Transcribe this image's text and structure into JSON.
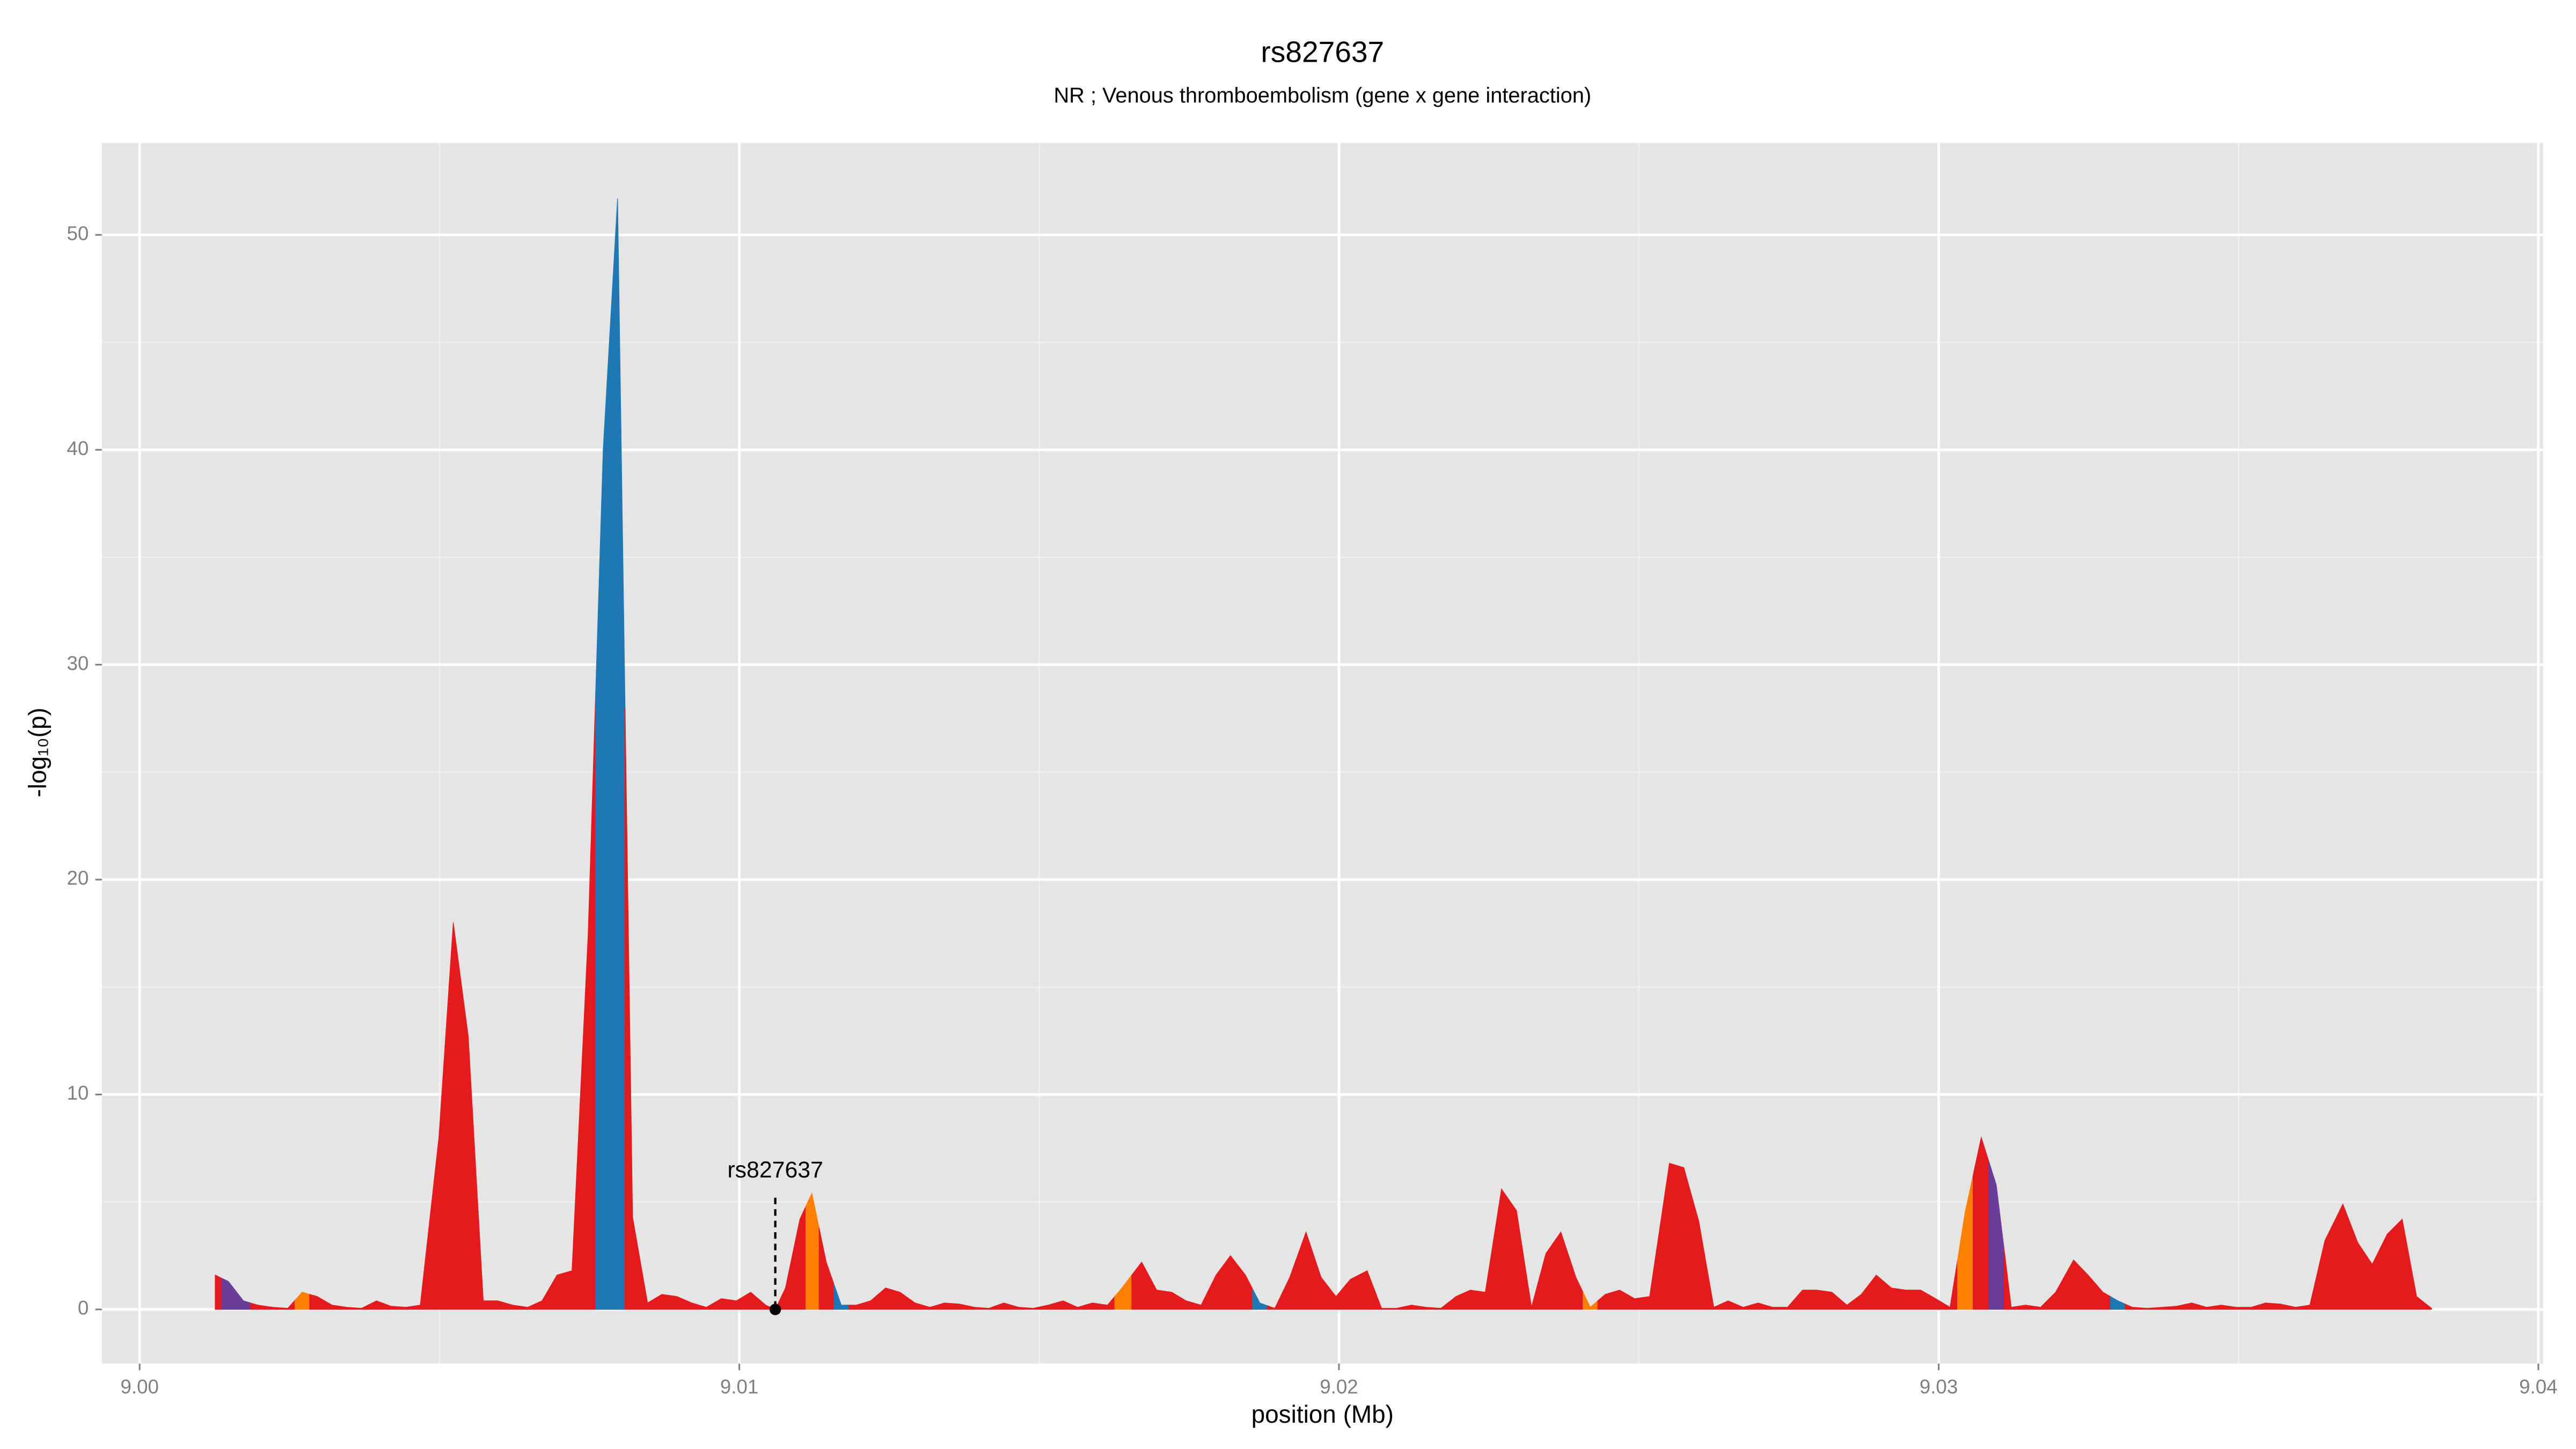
{
  "chart_data": {
    "type": "area",
    "title": "rs827637",
    "subtitle": "NR ; Venous thromboembolism (gene x gene interaction)",
    "x_label": "position (Mb)",
    "y_label": "-log₁₀(p)",
    "xlim": [
      8.99937,
      9.04008
    ],
    "ylim": [
      -2.52,
      54.28
    ],
    "xticks": [
      {
        "value": 9,
        "label": "9.00"
      },
      9.01,
      9.02,
      9.03,
      9.04
    ],
    "yticks": [
      0,
      10,
      20,
      30,
      40,
      50
    ],
    "grid": true,
    "x": [
      9.00126,
      9.00148,
      9.00173,
      9.00197,
      9.00222,
      9.00247,
      9.00271,
      9.00296,
      9.00321,
      9.00345,
      9.0037,
      9.00395,
      9.00419,
      9.00444,
      9.00468,
      9.00499,
      9.00523,
      9.00548,
      9.00573,
      9.00597,
      9.00622,
      9.00647,
      9.00671,
      9.00696,
      9.00721,
      9.00748,
      9.00773,
      9.00797,
      9.00822,
      9.00847,
      9.00871,
      9.00896,
      9.00921,
      9.00945,
      9.0097,
      9.00995,
      9.01019,
      9.01044,
      9.0106,
      9.01077,
      9.01101,
      9.01121,
      9.01145,
      9.0117,
      9.01195,
      9.01219,
      9.01244,
      9.01268,
      9.01293,
      9.01318,
      9.01342,
      9.01367,
      9.01392,
      9.01416,
      9.01441,
      9.01466,
      9.0149,
      9.01515,
      9.0154,
      9.01564,
      9.01589,
      9.01614,
      9.01638,
      9.01671,
      9.01696,
      9.01721,
      9.01745,
      9.0177,
      9.01795,
      9.01819,
      9.01844,
      9.01868,
      9.01893,
      9.01918,
      9.01945,
      9.0197,
      9.01995,
      9.02019,
      9.02047,
      9.02071,
      9.02096,
      9.02121,
      9.02145,
      9.0217,
      9.02195,
      9.02219,
      9.02244,
      9.02271,
      9.02296,
      9.02321,
      9.02345,
      9.0237,
      9.02395,
      9.02419,
      9.02444,
      9.02468,
      9.02493,
      9.02518,
      9.02551,
      9.02575,
      9.026,
      9.02625,
      9.02649,
      9.02674,
      9.02699,
      9.02723,
      9.02748,
      9.02773,
      9.02797,
      9.02822,
      9.02847,
      9.02871,
      9.02896,
      9.02921,
      9.02945,
      9.0297,
      9.02995,
      9.03019,
      9.03044,
      9.03071,
      9.03096,
      9.03121,
      9.03145,
      9.0317,
      9.03195,
      9.03225,
      9.03249,
      9.03274,
      9.03299,
      9.03323,
      9.03348,
      9.03373,
      9.03397,
      9.03422,
      9.03447,
      9.03471,
      9.03496,
      9.03521,
      9.03545,
      9.0357,
      9.03595,
      9.03619,
      9.03644,
      9.03674,
      9.03699,
      9.03723,
      9.03748,
      9.03773,
      9.03797,
      9.03822
    ],
    "values": [
      1.6,
      1.3,
      0.4,
      0.2,
      0.1,
      0.05,
      0.8,
      0.6,
      0.2,
      0.1,
      0.05,
      0.4,
      0.15,
      0.1,
      0.2,
      8,
      18,
      12.7,
      0.4,
      0.4,
      0.2,
      0.1,
      0.4,
      1.6,
      1.8,
      17.5,
      40,
      51.7,
      4.3,
      0.3,
      0.7,
      0.6,
      0.3,
      0.1,
      0.5,
      0.4,
      0.8,
      0.2,
      0,
      1.0,
      4.2,
      5.4,
      2.2,
      0.2,
      0.2,
      0.4,
      1.0,
      0.8,
      0.3,
      0.1,
      0.3,
      0.25,
      0.1,
      0.05,
      0.3,
      0.1,
      0.05,
      0.2,
      0.4,
      0.1,
      0.3,
      0.2,
      1.0,
      2.2,
      0.9,
      0.8,
      0.4,
      0.2,
      1.6,
      2.5,
      1.6,
      0.3,
      0.05,
      1.5,
      3.6,
      1.5,
      0.6,
      1.4,
      1.8,
      0.05,
      0.05,
      0.2,
      0.1,
      0.05,
      0.6,
      0.9,
      0.8,
      5.6,
      4.6,
      0.1,
      2.6,
      3.6,
      1.5,
      0.1,
      0.7,
      0.9,
      0.5,
      0.6,
      6.8,
      6.6,
      4.1,
      0.1,
      0.4,
      0.1,
      0.3,
      0.1,
      0.1,
      0.9,
      0.9,
      0.8,
      0.2,
      0.7,
      1.6,
      1.0,
      0.9,
      0.9,
      0.5,
      0.1,
      4.5,
      8.0,
      5.8,
      0.1,
      0.2,
      0.1,
      0.8,
      2.3,
      1.6,
      0.8,
      0.4,
      0.1,
      0.05,
      0.1,
      0.15,
      0.3,
      0.1,
      0.2,
      0.1,
      0.1,
      0.3,
      0.25,
      0.1,
      0.2,
      3.2,
      4.9,
      3.1,
      2.1,
      3.5,
      4.2,
      0.6,
      0.05
    ],
    "colors": [
      "#e41a1c",
      "#6a3d9a",
      "#6a3d9a",
      "#e41a1c",
      "#e41a1c",
      "#e41a1c",
      "#ff7f00",
      "#e41a1c",
      "#e41a1c",
      "#e41a1c",
      "#e41a1c",
      "#e41a1c",
      "#e41a1c",
      "#e41a1c",
      "#e41a1c",
      "#e41a1c",
      "#e41a1c",
      "#e41a1c",
      "#e41a1c",
      "#e41a1c",
      "#e41a1c",
      "#e41a1c",
      "#e41a1c",
      "#e41a1c",
      "#e41a1c",
      "#e41a1c",
      "#1f78b4",
      "#1f78b4",
      "#e41a1c",
      "#e41a1c",
      "#e41a1c",
      "#e41a1c",
      "#e41a1c",
      "#e41a1c",
      "#e41a1c",
      "#e41a1c",
      "#e41a1c",
      "#e41a1c",
      "#e41a1c",
      "#e41a1c",
      "#e41a1c",
      "#ff7f00",
      "#e41a1c",
      "#1f78b4",
      "#e41a1c",
      "#e41a1c",
      "#e41a1c",
      "#e41a1c",
      "#e41a1c",
      "#e41a1c",
      "#e41a1c",
      "#e41a1c",
      "#e41a1c",
      "#e41a1c",
      "#e41a1c",
      "#e41a1c",
      "#e41a1c",
      "#e41a1c",
      "#e41a1c",
      "#e41a1c",
      "#e41a1c",
      "#e41a1c",
      "#ff7f00",
      "#e41a1c",
      "#e41a1c",
      "#e41a1c",
      "#e41a1c",
      "#e41a1c",
      "#e41a1c",
      "#e41a1c",
      "#e41a1c",
      "#1f78b4",
      "#e41a1c",
      "#e41a1c",
      "#e41a1c",
      "#e41a1c",
      "#e41a1c",
      "#e41a1c",
      "#e41a1c",
      "#e41a1c",
      "#e41a1c",
      "#e41a1c",
      "#e41a1c",
      "#e41a1c",
      "#e41a1c",
      "#e41a1c",
      "#e41a1c",
      "#e41a1c",
      "#e41a1c",
      "#e41a1c",
      "#e41a1c",
      "#e41a1c",
      "#e41a1c",
      "#ff7f00",
      "#e41a1c",
      "#e41a1c",
      "#e41a1c",
      "#e41a1c",
      "#e41a1c",
      "#e41a1c",
      "#e41a1c",
      "#e41a1c",
      "#e41a1c",
      "#e41a1c",
      "#e41a1c",
      "#e41a1c",
      "#e41a1c",
      "#e41a1c",
      "#e41a1c",
      "#e41a1c",
      "#e41a1c",
      "#e41a1c",
      "#e41a1c",
      "#e41a1c",
      "#e41a1c",
      "#e41a1c",
      "#e41a1c",
      "#e41a1c",
      "#ff7f00",
      "#e41a1c",
      "#6a3d9a",
      "#e41a1c",
      "#e41a1c",
      "#e41a1c",
      "#e41a1c",
      "#e41a1c",
      "#e41a1c",
      "#e41a1c",
      "#1f78b4",
      "#e41a1c",
      "#e41a1c",
      "#e41a1c",
      "#e41a1c",
      "#e41a1c",
      "#e41a1c",
      "#e41a1c",
      "#e41a1c",
      "#e41a1c",
      "#e41a1c",
      "#e41a1c",
      "#e41a1c",
      "#e41a1c",
      "#e41a1c",
      "#e41a1c",
      "#e41a1c",
      "#e41a1c",
      "#e41a1c",
      "#e41a1c",
      "#e41a1c",
      "#e41a1c"
    ],
    "annotation": {
      "text": "rs827637",
      "x": 9.0106,
      "y": 0
    }
  }
}
